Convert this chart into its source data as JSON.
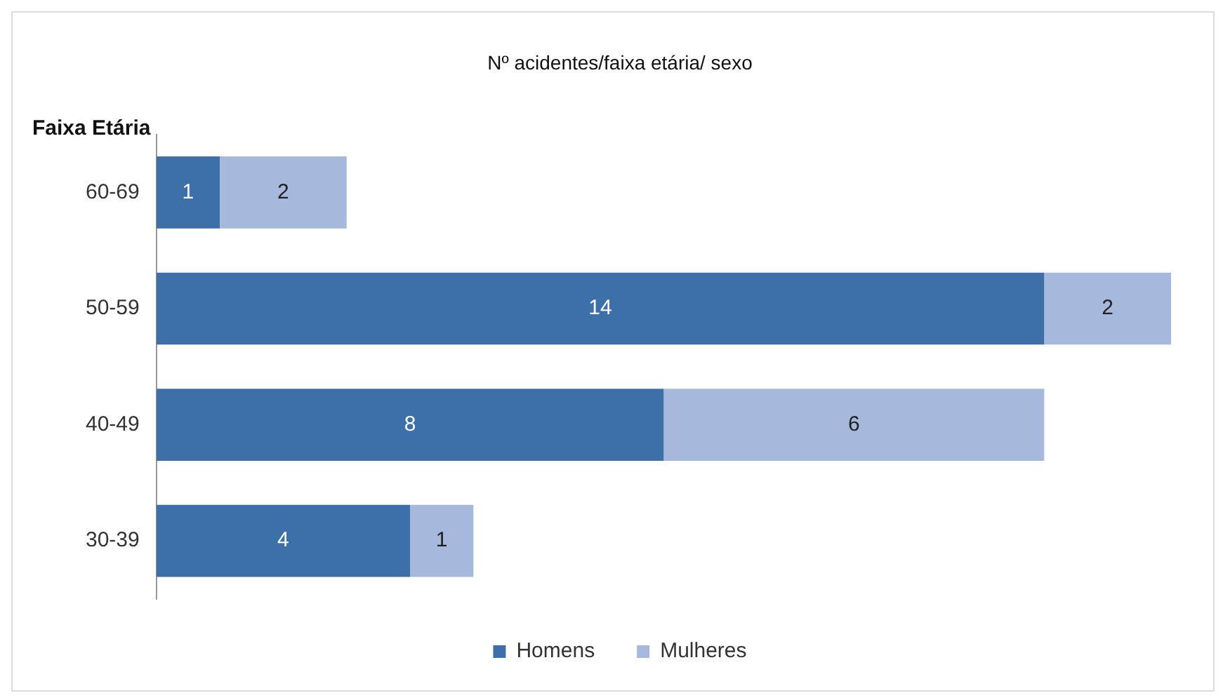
{
  "chart_data": {
    "type": "bar",
    "title": "Nº acidentes/faixa etária/ sexo",
    "ylabel": "Faixa Etária",
    "orientation": "horizontal",
    "stacked": true,
    "categories": [
      "60-69",
      "50-59",
      "40-49",
      "30-39"
    ],
    "series": [
      {
        "name": "Homens",
        "color": "#3d6fa8",
        "values": [
          1,
          14,
          8,
          4
        ]
      },
      {
        "name": "Mulheres",
        "color": "#a6b9dc",
        "values": [
          2,
          2,
          6,
          1
        ]
      }
    ],
    "data_labels": true,
    "legend": "bottom",
    "grid": false
  }
}
